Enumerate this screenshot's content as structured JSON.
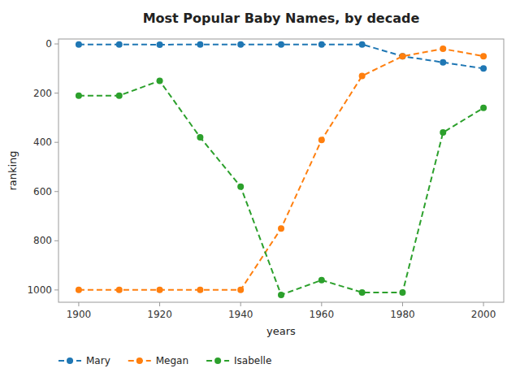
{
  "chart_data": {
    "type": "line",
    "title": "Most Popular Baby Names, by decade",
    "xlabel": "years",
    "ylabel": "ranking",
    "x": [
      1900,
      1910,
      1920,
      1930,
      1940,
      1950,
      1960,
      1970,
      1980,
      1990,
      2000
    ],
    "series": [
      {
        "name": "Mary",
        "color": "#1f77b4",
        "marker": "circle",
        "line_style": "dashed",
        "values": [
          2,
          2,
          3,
          2,
          2,
          2,
          2,
          2,
          50,
          75,
          100
        ]
      },
      {
        "name": "Megan",
        "color": "#ff7f0e",
        "marker": "circle",
        "line_style": "dashed",
        "values": [
          1000,
          1000,
          1000,
          1000,
          1000,
          750,
          390,
          130,
          50,
          20,
          50
        ]
      },
      {
        "name": "Isabelle",
        "color": "#2ca02c",
        "marker": "circle",
        "line_style": "dashed",
        "values": [
          210,
          210,
          150,
          380,
          580,
          1020,
          960,
          1010,
          1010,
          360,
          260
        ]
      }
    ],
    "xlim": [
      1895,
      2005
    ],
    "ylim": [
      1050,
      -20
    ],
    "xticks": [
      1900,
      1920,
      1940,
      1960,
      1980,
      2000
    ],
    "yticks": [
      0,
      200,
      400,
      600,
      800,
      1000
    ],
    "grid": false,
    "legend": "lower left"
  }
}
